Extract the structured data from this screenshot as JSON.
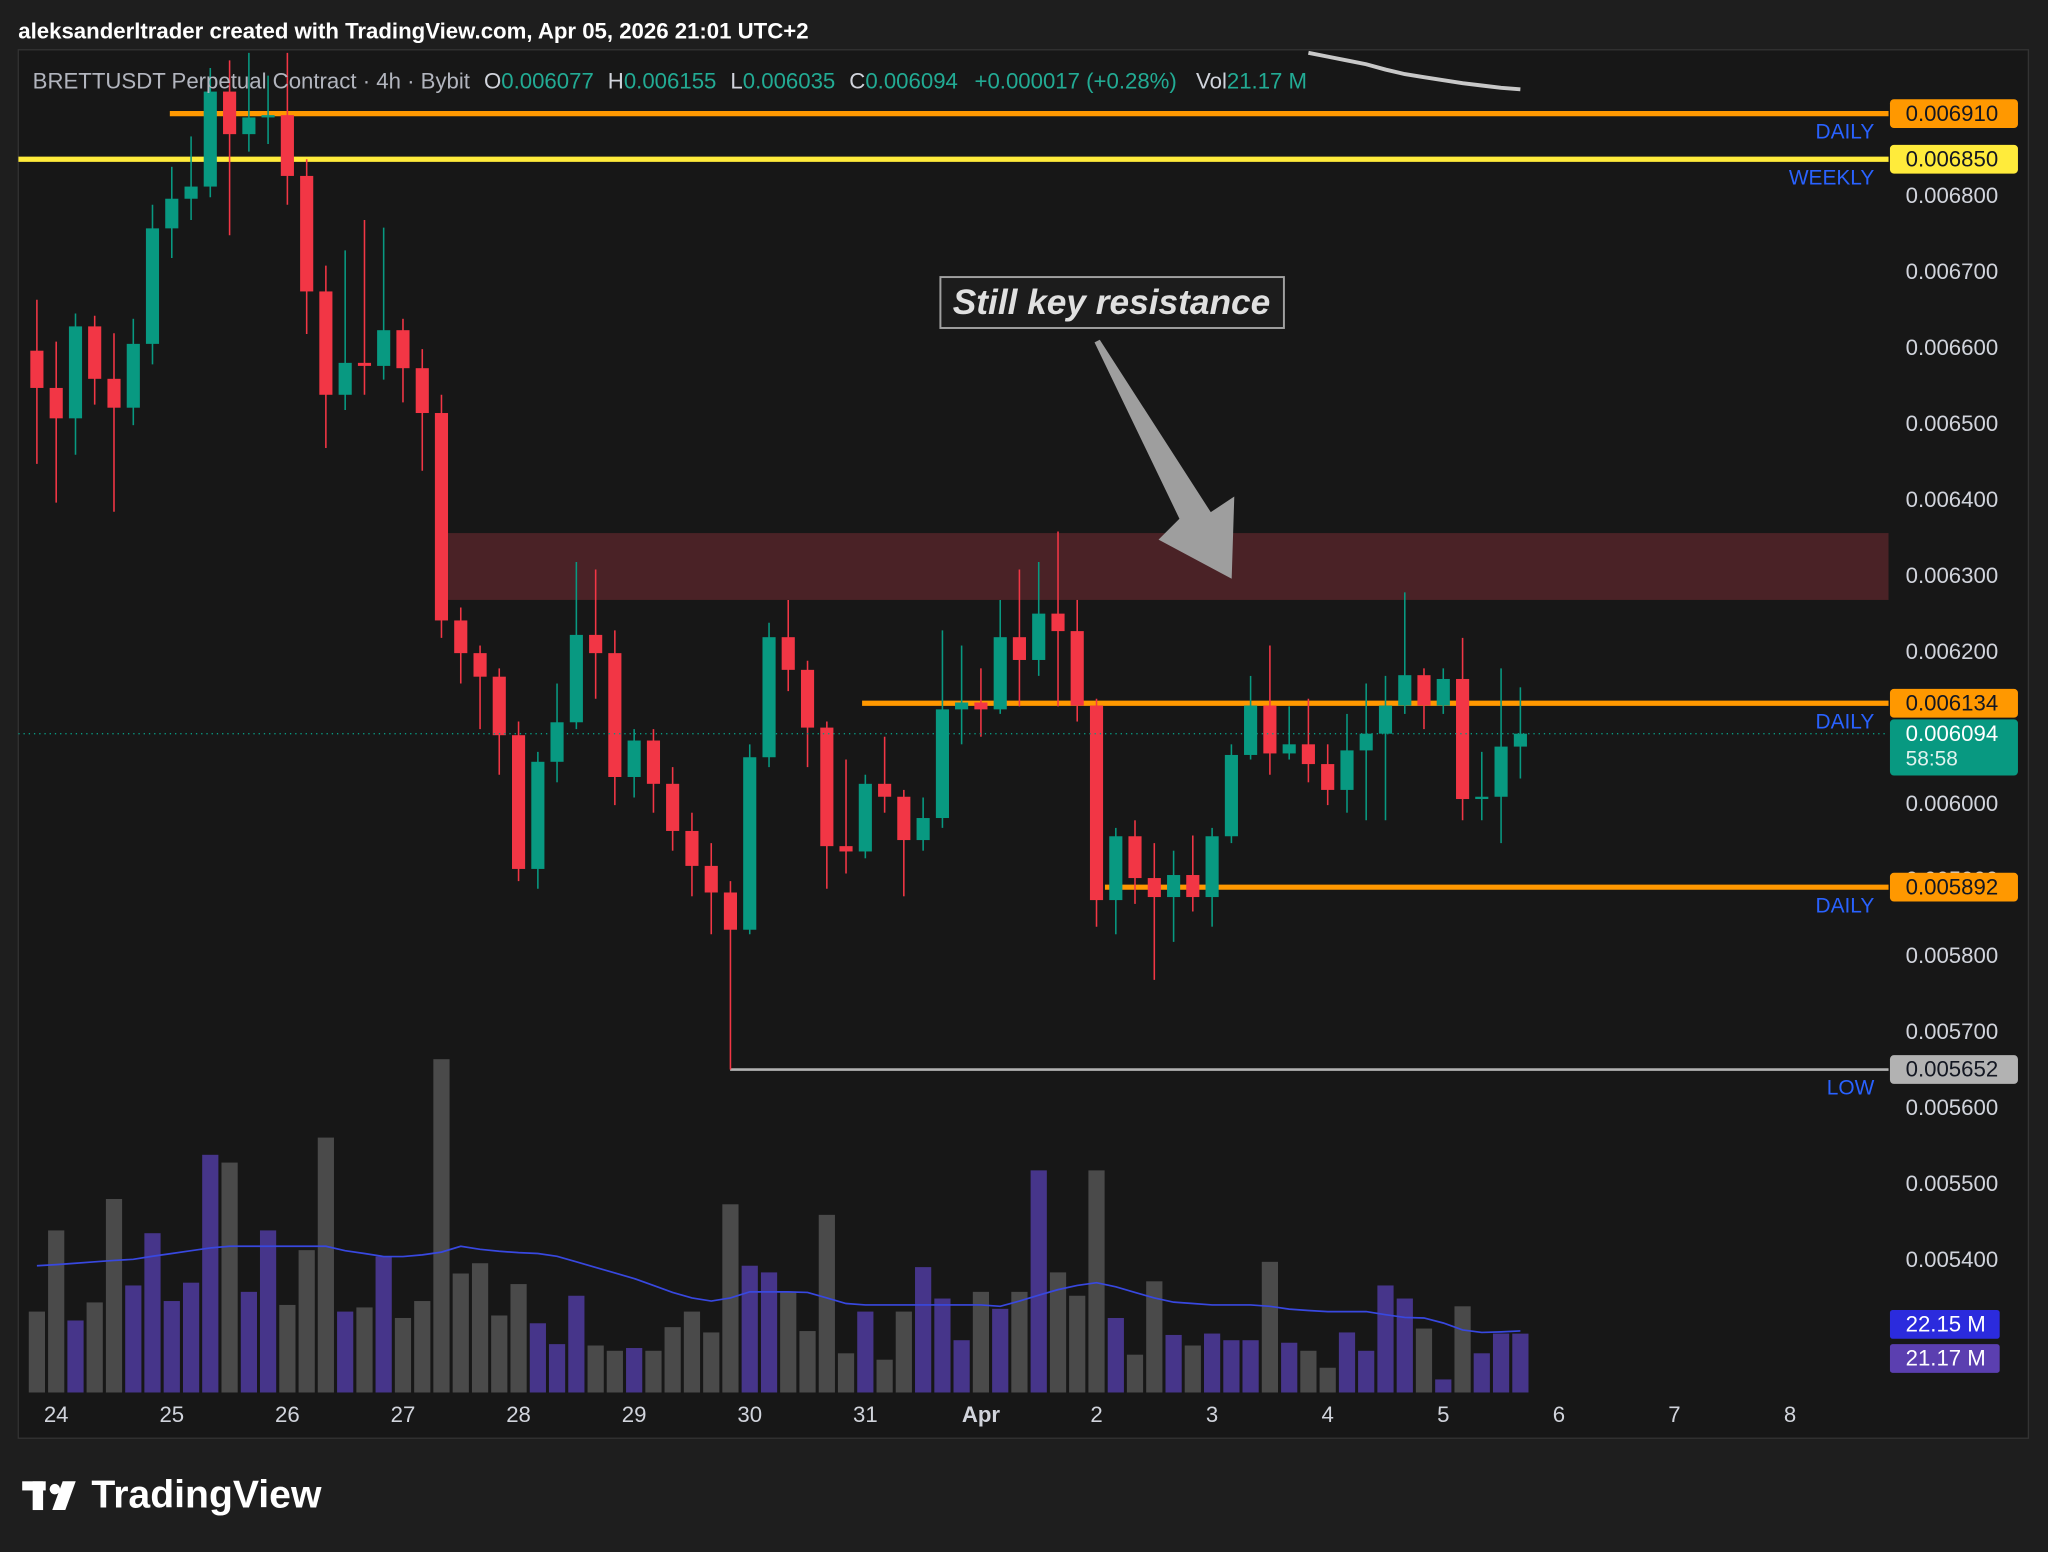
{
  "header": {
    "attribution": "aleksanderltrader created with TradingView.com, Apr 05, 2026 21:01 UTC+2"
  },
  "chart_data": {
    "type": "candlestick",
    "symbol": "BRETTUSDT Perpetual Contract · 4h · Bybit",
    "legend": {
      "o": "O",
      "h": "H",
      "l": "L",
      "c": "C",
      "change": "+0.000017 (+0.28%)",
      "vol": "Vol"
    },
    "countdown": "58:58",
    "annotation": "Still key resistance",
    "up_color": "#089981",
    "down_color": "#f23645",
    "x": [
      23.833,
      24,
      24.167,
      24.333,
      24.5,
      24.667,
      24.833,
      25,
      25.167,
      25.333,
      25.5,
      25.667,
      25.833,
      26,
      26.167,
      26.333,
      26.5,
      26.667,
      26.833,
      27,
      27.167,
      27.333,
      27.5,
      27.667,
      27.833,
      28,
      28.167,
      28.333,
      28.5,
      28.667,
      28.833,
      29,
      29.167,
      29.333,
      29.5,
      29.667,
      29.833,
      30,
      30.167,
      30.333,
      30.5,
      30.667,
      30.833,
      31,
      31.167,
      31.333,
      31.5,
      31.667,
      31.833,
      32,
      32.167,
      32.333,
      32.5,
      32.667,
      32.833,
      33,
      33.167,
      33.333,
      33.5,
      33.667,
      33.833,
      34,
      34.167,
      34.333,
      34.5,
      34.667,
      34.833,
      35,
      35.167,
      35.333,
      35.5,
      35.667,
      35.833,
      36,
      36.167,
      36.333,
      36.5,
      36.667
    ],
    "open": [
      0.006598,
      0.006549,
      0.006509,
      0.00663,
      0.006561,
      0.006523,
      0.006607,
      0.006759,
      0.006798,
      0.006814,
      0.006939,
      0.006883,
      0.006905,
      0.006908,
      0.006828,
      0.006676,
      0.00654,
      0.006582,
      0.006578,
      0.006625,
      0.006575,
      0.006516,
      0.006243,
      0.0062,
      0.006169,
      0.006092,
      0.005916,
      0.006057,
      0.006109,
      0.006224,
      0.0062,
      0.006037,
      0.006085,
      0.006028,
      0.005966,
      0.00592,
      0.005885,
      0.005836,
      0.006063,
      0.006221,
      0.006178,
      0.006102,
      0.005946,
      0.005939,
      0.006028,
      0.006011,
      0.005954,
      0.005983,
      0.006126,
      0.006135,
      0.006126,
      0.006221,
      0.006191,
      0.006252,
      0.006229,
      0.006131,
      0.005875,
      0.005959,
      0.005904,
      0.005879,
      0.005908,
      0.005879,
      0.005959,
      0.006066,
      0.006131,
      0.006068,
      0.00608,
      0.006054,
      0.00602,
      0.006072,
      0.006094,
      0.006131,
      0.006171,
      0.006131,
      0.006166,
      0.006008,
      0.006011,
      0.006077
    ],
    "high": [
      0.006665,
      0.00661,
      0.006647,
      0.006644,
      0.006621,
      0.00664,
      0.00679,
      0.00684,
      0.00688,
      0.00697,
      0.00698,
      0.00699,
      0.00696,
      0.00699,
      0.00685,
      0.00671,
      0.00673,
      0.00677,
      0.00676,
      0.00664,
      0.0066,
      0.00654,
      0.00626,
      0.00621,
      0.00618,
      0.00611,
      0.00607,
      0.00616,
      0.00632,
      0.00631,
      0.00623,
      0.0061,
      0.0061,
      0.00605,
      0.00599,
      0.00595,
      0.0059,
      0.00608,
      0.00624,
      0.00627,
      0.00619,
      0.00611,
      0.00606,
      0.00604,
      0.00609,
      0.00602,
      0.00601,
      0.00623,
      0.00621,
      0.00618,
      0.00627,
      0.00631,
      0.00632,
      0.00636,
      0.00627,
      0.00614,
      0.00597,
      0.00598,
      0.00595,
      0.00594,
      0.00596,
      0.00597,
      0.00608,
      0.00617,
      0.00621,
      0.00613,
      0.00614,
      0.00608,
      0.00612,
      0.00616,
      0.00617,
      0.00628,
      0.00618,
      0.00618,
      0.00622,
      0.00607,
      0.00618,
      0.006155
    ],
    "low": [
      0.006449,
      0.006398,
      0.006461,
      0.006527,
      0.006386,
      0.0065,
      0.00658,
      0.00672,
      0.00677,
      0.0068,
      0.00675,
      0.00686,
      0.00687,
      0.00679,
      0.00662,
      0.00647,
      0.00652,
      0.00654,
      0.00656,
      0.00653,
      0.00644,
      0.00622,
      0.00616,
      0.0061,
      0.00604,
      0.0059,
      0.00589,
      0.00603,
      0.0061,
      0.00614,
      0.006,
      0.00601,
      0.00599,
      0.00594,
      0.00588,
      0.00583,
      0.005652,
      0.00583,
      0.00605,
      0.00615,
      0.00605,
      0.00589,
      0.00591,
      0.00593,
      0.00599,
      0.00588,
      0.00594,
      0.00597,
      0.00608,
      0.00609,
      0.00612,
      0.00613,
      0.00617,
      0.00613,
      0.00611,
      0.00584,
      0.00583,
      0.00587,
      0.00577,
      0.00582,
      0.00586,
      0.00584,
      0.00595,
      0.00606,
      0.00604,
      0.00606,
      0.00603,
      0.006,
      0.00599,
      0.00598,
      0.00598,
      0.00612,
      0.0061,
      0.00612,
      0.00598,
      0.00598,
      0.00595,
      0.006035
    ],
    "close": [
      0.006549,
      0.006509,
      0.00663,
      0.006561,
      0.006523,
      0.006607,
      0.006759,
      0.006798,
      0.006814,
      0.006939,
      0.006883,
      0.006905,
      0.006908,
      0.006828,
      0.006676,
      0.00654,
      0.006582,
      0.006578,
      0.006625,
      0.006575,
      0.006516,
      0.006243,
      0.0062,
      0.006169,
      0.006092,
      0.005916,
      0.006057,
      0.006109,
      0.006224,
      0.0062,
      0.006037,
      0.006085,
      0.006028,
      0.005966,
      0.00592,
      0.005885,
      0.005836,
      0.006063,
      0.006221,
      0.006178,
      0.006102,
      0.005946,
      0.005939,
      0.006028,
      0.006011,
      0.005954,
      0.005983,
      0.006126,
      0.006135,
      0.006126,
      0.006221,
      0.006191,
      0.006252,
      0.006229,
      0.006131,
      0.005875,
      0.005959,
      0.005904,
      0.005879,
      0.005908,
      0.005879,
      0.005959,
      0.006066,
      0.006131,
      0.006068,
      0.00608,
      0.006054,
      0.00602,
      0.006072,
      0.006094,
      0.006131,
      0.006171,
      0.006131,
      0.006166,
      0.006008,
      0.006011,
      0.006077,
      0.006094
    ],
    "ma_line": {
      "color": "#c8c8c8",
      "values": [
        null,
        null,
        null,
        null,
        null,
        null,
        null,
        null,
        null,
        null,
        null,
        null,
        null,
        null,
        null,
        null,
        null,
        null,
        null,
        null,
        null,
        null,
        null,
        null,
        null,
        null,
        null,
        null,
        null,
        null,
        null,
        null,
        null,
        null,
        null,
        null,
        null,
        null,
        null,
        null,
        null,
        null,
        null,
        null,
        null,
        null,
        null,
        null,
        null,
        null,
        null,
        null,
        null,
        null,
        null,
        null,
        null,
        null,
        null,
        null,
        null,
        null,
        null,
        null,
        null,
        null,
        0.00699,
        0.006985,
        0.00698,
        0.006975,
        0.006968,
        0.006962,
        0.006958,
        0.006954,
        0.00695,
        0.006947,
        0.006944,
        0.006942
      ]
    },
    "volume": {
      "axis": "y2",
      "up_color": "#46358a",
      "down_color": "#4a4a4a",
      "label": "21.17 M",
      "values": [
        29.1,
        58.3,
        25.9,
        32.4,
        69.6,
        38.5,
        57.3,
        32.9,
        39.5,
        85.5,
        82.7,
        36.2,
        58.3,
        31.5,
        51.2,
        91.7,
        29.1,
        30.6,
        48.9,
        26.8,
        32.9,
        119.9,
        42.8,
        46.5,
        27.7,
        39,
        24.9,
        17.4,
        34.8,
        16.9,
        15,
        16,
        15,
        23.5,
        29.1,
        21.6,
        67.7,
        45.6,
        43.2,
        36.2,
        22.1,
        63.9,
        14.1,
        29.1,
        11.8,
        29.1,
        45.1,
        33.8,
        18.8,
        36.2,
        30.1,
        36.2,
        79.9,
        43.2,
        34.8,
        79.9,
        26.8,
        13.6,
        40,
        20.7,
        16.9,
        21.2,
        18.8,
        18.8,
        47,
        17.9,
        15,
        8.9,
        21.6,
        15,
        38.5,
        33.8,
        23,
        4.7,
        31,
        14.1,
        21.2,
        21.17
      ]
    },
    "volume_ma": {
      "axis": "y2",
      "color": "#3848e0",
      "label": "22.15 M",
      "values": [
        45.6,
        46,
        46.5,
        47,
        47.5,
        47.9,
        49,
        50,
        51,
        52,
        52.6,
        52.6,
        52.6,
        52.6,
        52.6,
        52.6,
        51,
        50,
        48.9,
        48.9,
        49.5,
        50.5,
        52.6,
        51.5,
        50.8,
        50.3,
        50,
        49,
        47,
        45,
        43,
        41,
        38.5,
        36,
        34,
        32.9,
        34,
        36.2,
        36.2,
        36.2,
        36,
        34,
        32,
        31.5,
        31.5,
        31.5,
        31.5,
        31.5,
        31.5,
        31.5,
        31,
        32.9,
        35,
        37,
        38.5,
        39.5,
        38,
        36,
        34,
        32.5,
        32,
        31.5,
        31.5,
        31.5,
        31,
        30,
        29.5,
        29.1,
        29.1,
        29.1,
        28,
        27,
        26.8,
        25,
        22.5,
        21.6,
        21.8,
        22.15
      ]
    },
    "levels": [
      {
        "value": 0.00691,
        "label": "0.006910",
        "tag": "DAILY",
        "color": "#ff9800",
        "from": 24.983
      },
      {
        "value": 0.00685,
        "label": "0.006850",
        "tag": "WEEKLY",
        "color": "#ffeb3b"
      },
      {
        "value": 0.006134,
        "label": "0.006134",
        "tag": "DAILY",
        "color": "#ff9800",
        "from": 30.972
      },
      {
        "value": 0.005892,
        "label": "0.005892",
        "tag": "DAILY",
        "color": "#ff9800",
        "from": 33.073
      },
      {
        "value": 0.005652,
        "label": "0.005652",
        "tag": "LOW",
        "color": "#b2b2b2",
        "from": 29.83
      }
    ],
    "zone": {
      "from": 27.39,
      "top": 0.006358,
      "bottom": 0.00627,
      "color": "#4a2226"
    },
    "xlim": [
      23.672,
      39.853
    ],
    "xticks": [
      24,
      25,
      26,
      27,
      28,
      29,
      30,
      31,
      {
        "value": 32,
        "label": "Apr"
      },
      {
        "value": 33,
        "label": "2"
      },
      {
        "value": 34,
        "label": "3"
      },
      {
        "value": 35,
        "label": "4"
      },
      {
        "value": 36,
        "label": "5"
      },
      {
        "value": 37,
        "label": "6"
      },
      {
        "value": 38,
        "label": "7"
      },
      {
        "value": 39,
        "label": "8"
      }
    ],
    "ylim": [
      0.005227,
      0.006994
    ],
    "yticks": [
      {
        "value": 0.0054,
        "label": "0.005400"
      },
      {
        "value": 0.0055,
        "label": "0.005500"
      },
      {
        "value": 0.0056,
        "label": "0.005600"
      },
      {
        "value": 0.0057,
        "label": "0.005700"
      },
      {
        "value": 0.0058,
        "label": "0.005800"
      },
      {
        "value": 0.0059,
        "label": "0.005900"
      },
      {
        "value": 0.006,
        "label": "0.006000"
      },
      {
        "value": 0.0061,
        "label": "0.006100"
      },
      {
        "value": 0.0062,
        "label": "0.006200"
      },
      {
        "value": 0.0063,
        "label": "0.006300"
      },
      {
        "value": 0.0064,
        "label": "0.006400"
      },
      {
        "value": 0.0065,
        "label": "0.006500"
      },
      {
        "value": 0.0066,
        "label": "0.006600"
      },
      {
        "value": 0.0067,
        "label": "0.006700"
      },
      {
        "value": 0.0068,
        "label": "0.006800"
      }
    ],
    "y2lim": [
      0,
      483
    ],
    "grid": false
  },
  "footer": {
    "logo": "TradingView"
  }
}
